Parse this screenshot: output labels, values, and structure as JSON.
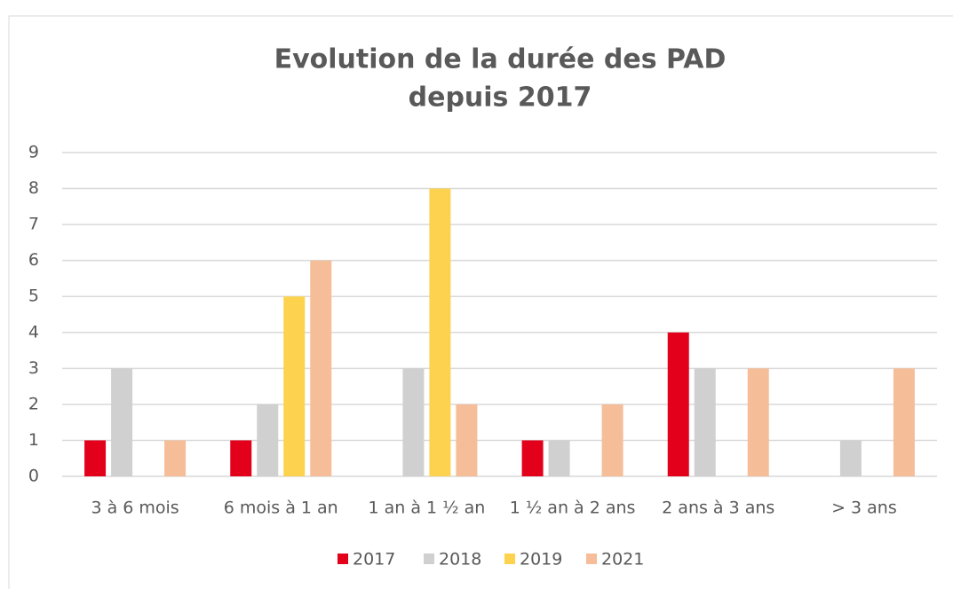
{
  "chart_data": {
    "type": "bar",
    "title": [
      "Evolution de la durée des PAD",
      "depuis 2017"
    ],
    "categories": [
      "3 à 6 mois",
      "6 mois à 1 an",
      "1 an à 1 ½ an",
      "1 ½ an à 2 ans",
      "2 ans à 3 ans",
      "> 3 ans"
    ],
    "series": [
      {
        "name": "2017",
        "color": "#e3001b",
        "values": [
          1,
          1,
          0,
          1,
          4,
          0
        ]
      },
      {
        "name": "2018",
        "color": "#d0d0d0",
        "values": [
          3,
          2,
          3,
          1,
          3,
          1
        ]
      },
      {
        "name": "2019",
        "color": "#fdd24e",
        "values": [
          0,
          5,
          8,
          0,
          0,
          0
        ]
      },
      {
        "name": "2021",
        "color": "#f5bd98",
        "values": [
          1,
          6,
          2,
          2,
          3,
          3
        ]
      }
    ],
    "ylim": [
      0,
      9
    ],
    "yticks": [
      0,
      1,
      2,
      3,
      4,
      5,
      6,
      7,
      8,
      9
    ],
    "grid": true,
    "legend": "bottom"
  }
}
